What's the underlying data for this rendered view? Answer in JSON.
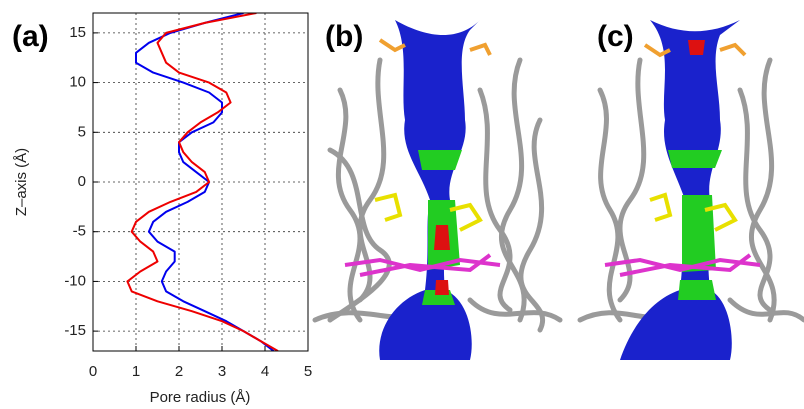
{
  "chart_data": {
    "type": "line",
    "x_label": "Pore radius (Å)",
    "y_label": "Z–axis (Å)",
    "xlim": [
      0,
      5
    ],
    "xticks": [
      0,
      1,
      2,
      3,
      4,
      5
    ],
    "ylim": [
      -17,
      17
    ],
    "yticks": [
      -15,
      -10,
      -5,
      0,
      5,
      10,
      15
    ],
    "grid": true,
    "series": [
      {
        "color": "#0000ee",
        "x": [
          3.5,
          2.6,
          1.8,
          1.3,
          1.0,
          1.0,
          1.4,
          2.1,
          2.7,
          3.0,
          3.0,
          2.8,
          2.3,
          2.0,
          2.0,
          2.1,
          2.4,
          2.7,
          2.6,
          2.2,
          1.7,
          1.4,
          1.3,
          1.5,
          1.9,
          1.9,
          1.7,
          1.6,
          1.7,
          2.1,
          2.6,
          3.1,
          3.5,
          3.9,
          4.2
        ],
        "values": [
          17,
          16,
          15,
          14,
          13,
          12,
          11,
          10,
          9,
          8,
          7,
          6,
          5,
          4,
          3,
          2,
          1,
          0,
          -1,
          -2,
          -3,
          -4,
          -5,
          -6,
          -7,
          -8,
          -9,
          -10,
          -11,
          -12,
          -13,
          -14,
          -15,
          -16,
          -17
        ]
      },
      {
        "color": "#ee0000",
        "x": [
          3.8,
          2.6,
          1.7,
          1.5,
          1.6,
          1.7,
          2.0,
          2.7,
          3.1,
          3.2,
          2.9,
          2.5,
          2.2,
          2.0,
          2.1,
          2.3,
          2.6,
          2.7,
          2.4,
          1.8,
          1.3,
          1.0,
          0.9,
          1.1,
          1.4,
          1.5,
          1.1,
          0.8,
          0.9,
          1.5,
          2.3,
          3.0,
          3.5,
          3.9,
          4.3
        ],
        "values": [
          17,
          16,
          15,
          14,
          13,
          12,
          11,
          10,
          9,
          8,
          7,
          6,
          5,
          4,
          3,
          2,
          1,
          0,
          -1,
          -2,
          -3,
          -4,
          -5,
          -6,
          -7,
          -8,
          -9,
          -10,
          -11,
          -12,
          -13,
          -14,
          -15,
          -16,
          -17
        ]
      }
    ]
  },
  "panel_labels": [
    "(a)",
    "(b)",
    "(c)"
  ]
}
